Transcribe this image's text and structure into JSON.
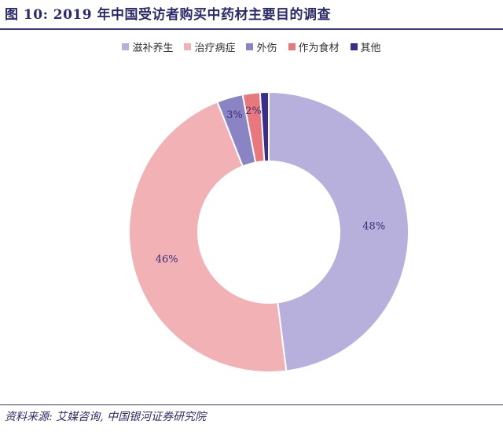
{
  "title": "图 10: 2019 年中国受访者购买中药材主要目的调查",
  "source": "资料来源: 艾媒咨询, 中国银河证券研究院",
  "chart_data": {
    "type": "pie",
    "subtype": "donut",
    "legend_position": "top",
    "categories": [
      "滋补养生",
      "治疗病症",
      "外伤",
      "作为食材",
      "其他"
    ],
    "values": [
      48,
      46,
      3,
      2,
      1
    ],
    "data_labels": [
      "48%",
      "46%",
      "3%",
      "2%",
      ""
    ],
    "colors": [
      "#b8b0dc",
      "#f2b1b4",
      "#8b84c4",
      "#e9787c",
      "#3a2d8c"
    ]
  }
}
